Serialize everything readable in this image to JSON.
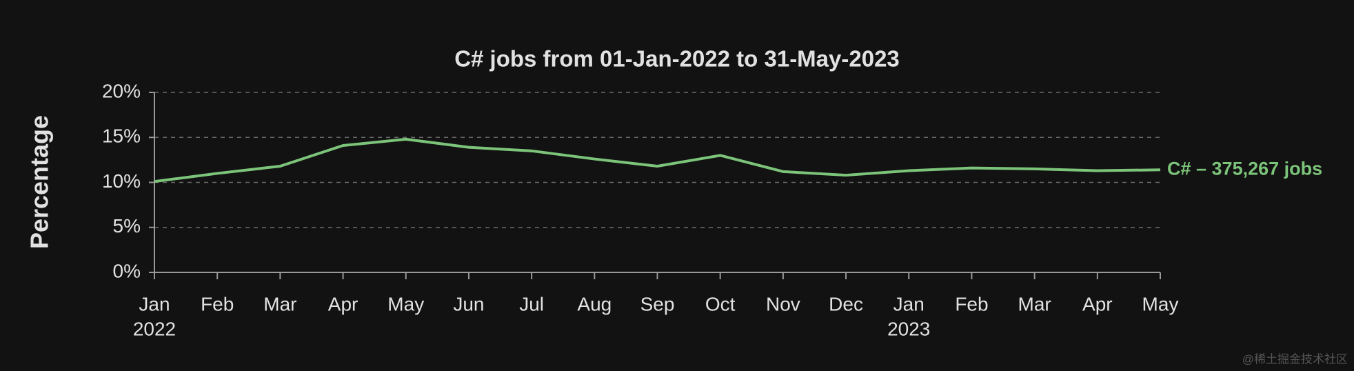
{
  "chart_data": {
    "type": "line",
    "title": "C# jobs from 01-Jan-2022 to 31-May-2023",
    "y_label": "Percentage",
    "categories": [
      "Jan",
      "Feb",
      "Mar",
      "Apr",
      "May",
      "Jun",
      "Jul",
      "Aug",
      "Sep",
      "Oct",
      "Nov",
      "Dec",
      "Jan",
      "Feb",
      "Mar",
      "Apr",
      "May"
    ],
    "years": [
      "2022",
      null,
      null,
      null,
      null,
      null,
      null,
      null,
      null,
      null,
      null,
      null,
      "2023",
      null,
      null,
      null,
      null
    ],
    "series": [
      {
        "name": "C# – 375,267 jobs",
        "color": "#7cc47a",
        "values": [
          10.1,
          11.0,
          11.8,
          14.1,
          14.8,
          13.9,
          13.5,
          12.6,
          11.8,
          13.0,
          11.2,
          10.8,
          11.3,
          11.6,
          11.5,
          11.3,
          11.4
        ]
      }
    ],
    "ylim": [
      0,
      20
    ],
    "yticks": [
      {
        "value": 0,
        "label": "0%"
      },
      {
        "value": 5,
        "label": "5%"
      },
      {
        "value": 10,
        "label": "10%"
      },
      {
        "value": 15,
        "label": "15%"
      },
      {
        "value": 20,
        "label": "20%"
      }
    ],
    "grid": true
  },
  "watermark": "@稀土掘金技术社区"
}
